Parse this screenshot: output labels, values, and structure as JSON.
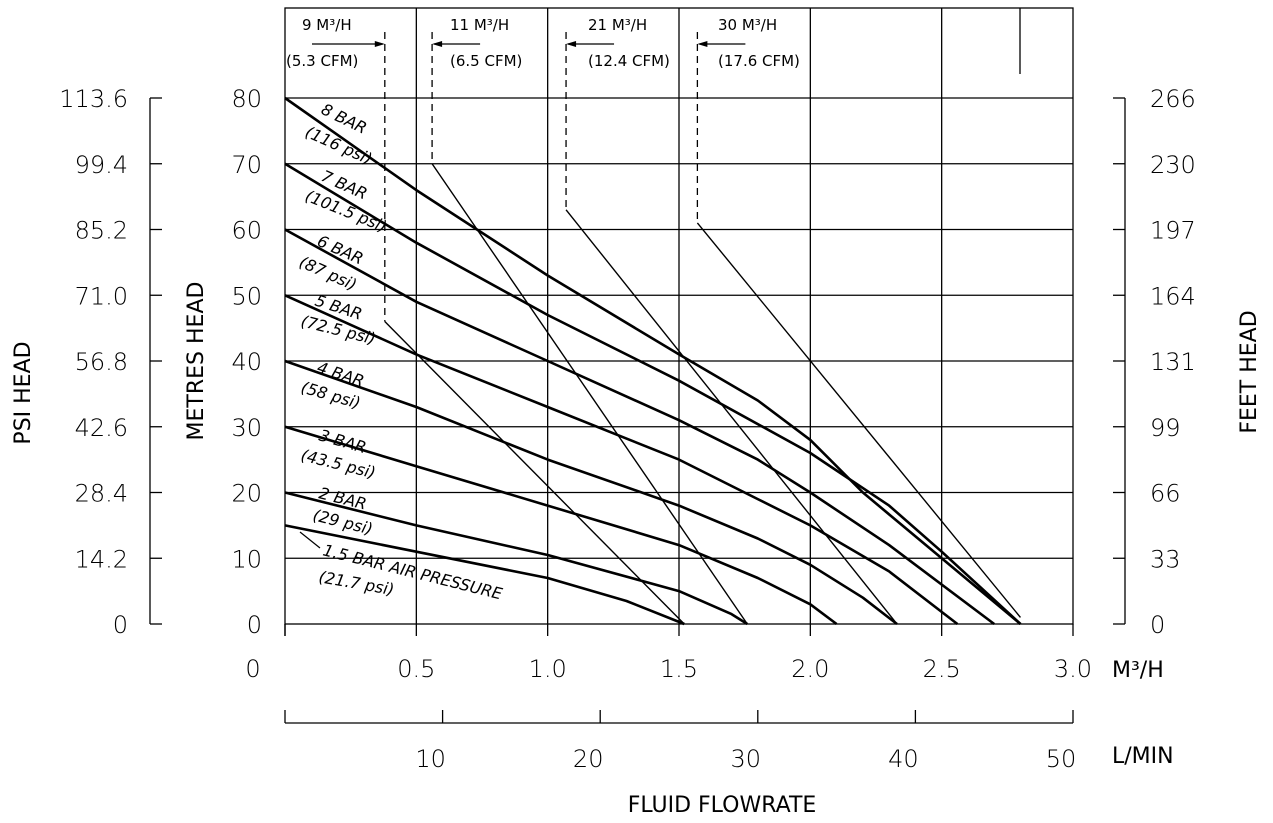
{
  "chart_data": {
    "type": "line",
    "title": "",
    "xlabel": "FLUID FLOWRATE",
    "x_unit_primary": "M³/H",
    "x_unit_secondary": "L/MIN",
    "xlim": [
      0,
      3.0
    ],
    "x_secondary_lim": [
      0,
      50
    ],
    "x_ticks": [
      "0",
      "0.5",
      "1.0",
      "1.5",
      "2.0",
      "2.5",
      "3.0"
    ],
    "x_secondary_ticks": [
      "10",
      "20",
      "30",
      "40",
      "50"
    ],
    "ylabel_left_outer": "PSI HEAD",
    "ylabel_left": "METRES HEAD",
    "ylabel_right": "FEET HEAD",
    "ylim": [
      0,
      80
    ],
    "y_ticks": [
      "0",
      "10",
      "20",
      "30",
      "40",
      "50",
      "60",
      "70",
      "80"
    ],
    "y_psi_ticks": [
      "0",
      "14.2",
      "28.4",
      "42.6",
      "56.8",
      "71.0",
      "85.2",
      "99.4",
      "113.6"
    ],
    "y_feet_ticks": [
      "0",
      "33",
      "66",
      "99",
      "131",
      "164",
      "197",
      "230",
      "266"
    ],
    "grid": true,
    "series": [
      {
        "name": "8 BAR",
        "name_sub": "(116 psi)",
        "x": [
          0,
          0.5,
          1.0,
          1.5,
          1.8,
          2.0,
          2.2,
          2.5,
          2.8
        ],
        "y": [
          80,
          66,
          53,
          41,
          34,
          28,
          20,
          10,
          0
        ]
      },
      {
        "name": "7 BAR",
        "name_sub": "(101.5 psi)",
        "x": [
          0,
          0.5,
          1.0,
          1.5,
          2.0,
          2.3,
          2.5,
          2.8
        ],
        "y": [
          70,
          58,
          47,
          37,
          26,
          18,
          11,
          0
        ]
      },
      {
        "name": "6 BAR",
        "name_sub": "(87 psi)",
        "x": [
          0,
          0.5,
          1.0,
          1.5,
          1.8,
          2.0,
          2.3,
          2.7
        ],
        "y": [
          60,
          49,
          40,
          31,
          25,
          20,
          12,
          0
        ]
      },
      {
        "name": "5 BAR",
        "name_sub": "(72.5 psi)",
        "x": [
          0,
          0.5,
          1.0,
          1.5,
          1.8,
          2.0,
          2.3,
          2.56
        ],
        "y": [
          50,
          41,
          33,
          25,
          19,
          15,
          8,
          0
        ]
      },
      {
        "name": "4 BAR",
        "name_sub": "(58 psi)",
        "x": [
          0,
          0.5,
          1.0,
          1.5,
          1.8,
          2.0,
          2.2,
          2.33
        ],
        "y": [
          40,
          33,
          25,
          18,
          13,
          9,
          4,
          0
        ]
      },
      {
        "name": "3 BAR",
        "name_sub": "(43.5 psi)",
        "x": [
          0,
          0.5,
          1.0,
          1.5,
          1.8,
          2.0,
          2.1
        ],
        "y": [
          30,
          24,
          18,
          12,
          7,
          3,
          0
        ]
      },
      {
        "name": "2 BAR",
        "name_sub": "(29 psi)",
        "x": [
          0,
          0.5,
          1.0,
          1.5,
          1.7,
          1.76
        ],
        "y": [
          20,
          15,
          10.5,
          5,
          1.5,
          0
        ]
      },
      {
        "name": "1.5 BAR AIR PRESSURE",
        "name_sub": "(21.7 psi)",
        "x": [
          0,
          0.5,
          1.0,
          1.3,
          1.52
        ],
        "y": [
          15,
          11,
          7,
          3.5,
          0
        ]
      }
    ],
    "air_consumption": [
      {
        "label": "9 M³/H",
        "sub": "(5.3 CFM)",
        "x": [
          0.38,
          0.38,
          1.52
        ],
        "y": [
          80,
          46,
          0
        ]
      },
      {
        "label": "11 M³/H",
        "sub": "(6.5 CFM)",
        "x": [
          0.56,
          0.56,
          1.76
        ],
        "y": [
          80,
          70,
          0
        ]
      },
      {
        "label": "21 M³/H",
        "sub": "(12.4 CFM)",
        "x": [
          1.07,
          1.07,
          2.33
        ],
        "y": [
          80,
          63,
          0
        ]
      },
      {
        "label": "30 M³/H",
        "sub": "(17.6 CFM)",
        "x": [
          1.57,
          1.57,
          2.8
        ],
        "y": [
          80,
          61,
          1
        ]
      }
    ]
  }
}
